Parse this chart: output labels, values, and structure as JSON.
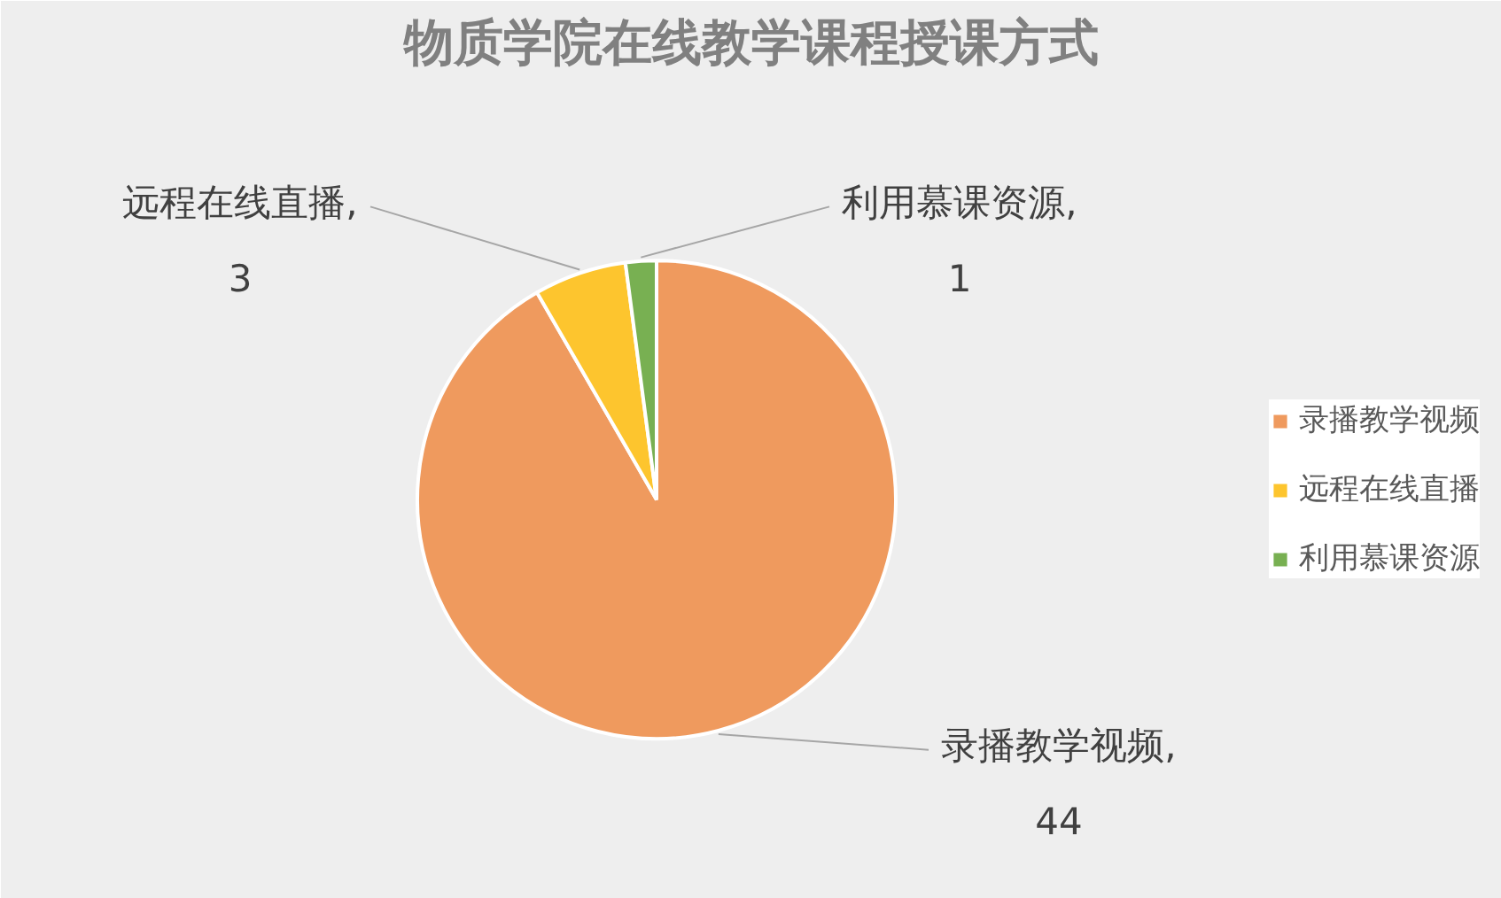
{
  "chart_data": {
    "type": "pie",
    "title": "物质学院在线教学课程授课方式",
    "categories": [
      "录播教学视频",
      "远程在线直播",
      "利用慕课资源"
    ],
    "values": [
      44,
      3,
      1
    ],
    "colors": [
      "#ef9a5e",
      "#fdc52e",
      "#78b052"
    ],
    "value_labels": [
      "录播教学视频,\n44",
      "远程在线直播,\n3",
      "利用慕课资源,\n1"
    ],
    "legend": "right"
  }
}
